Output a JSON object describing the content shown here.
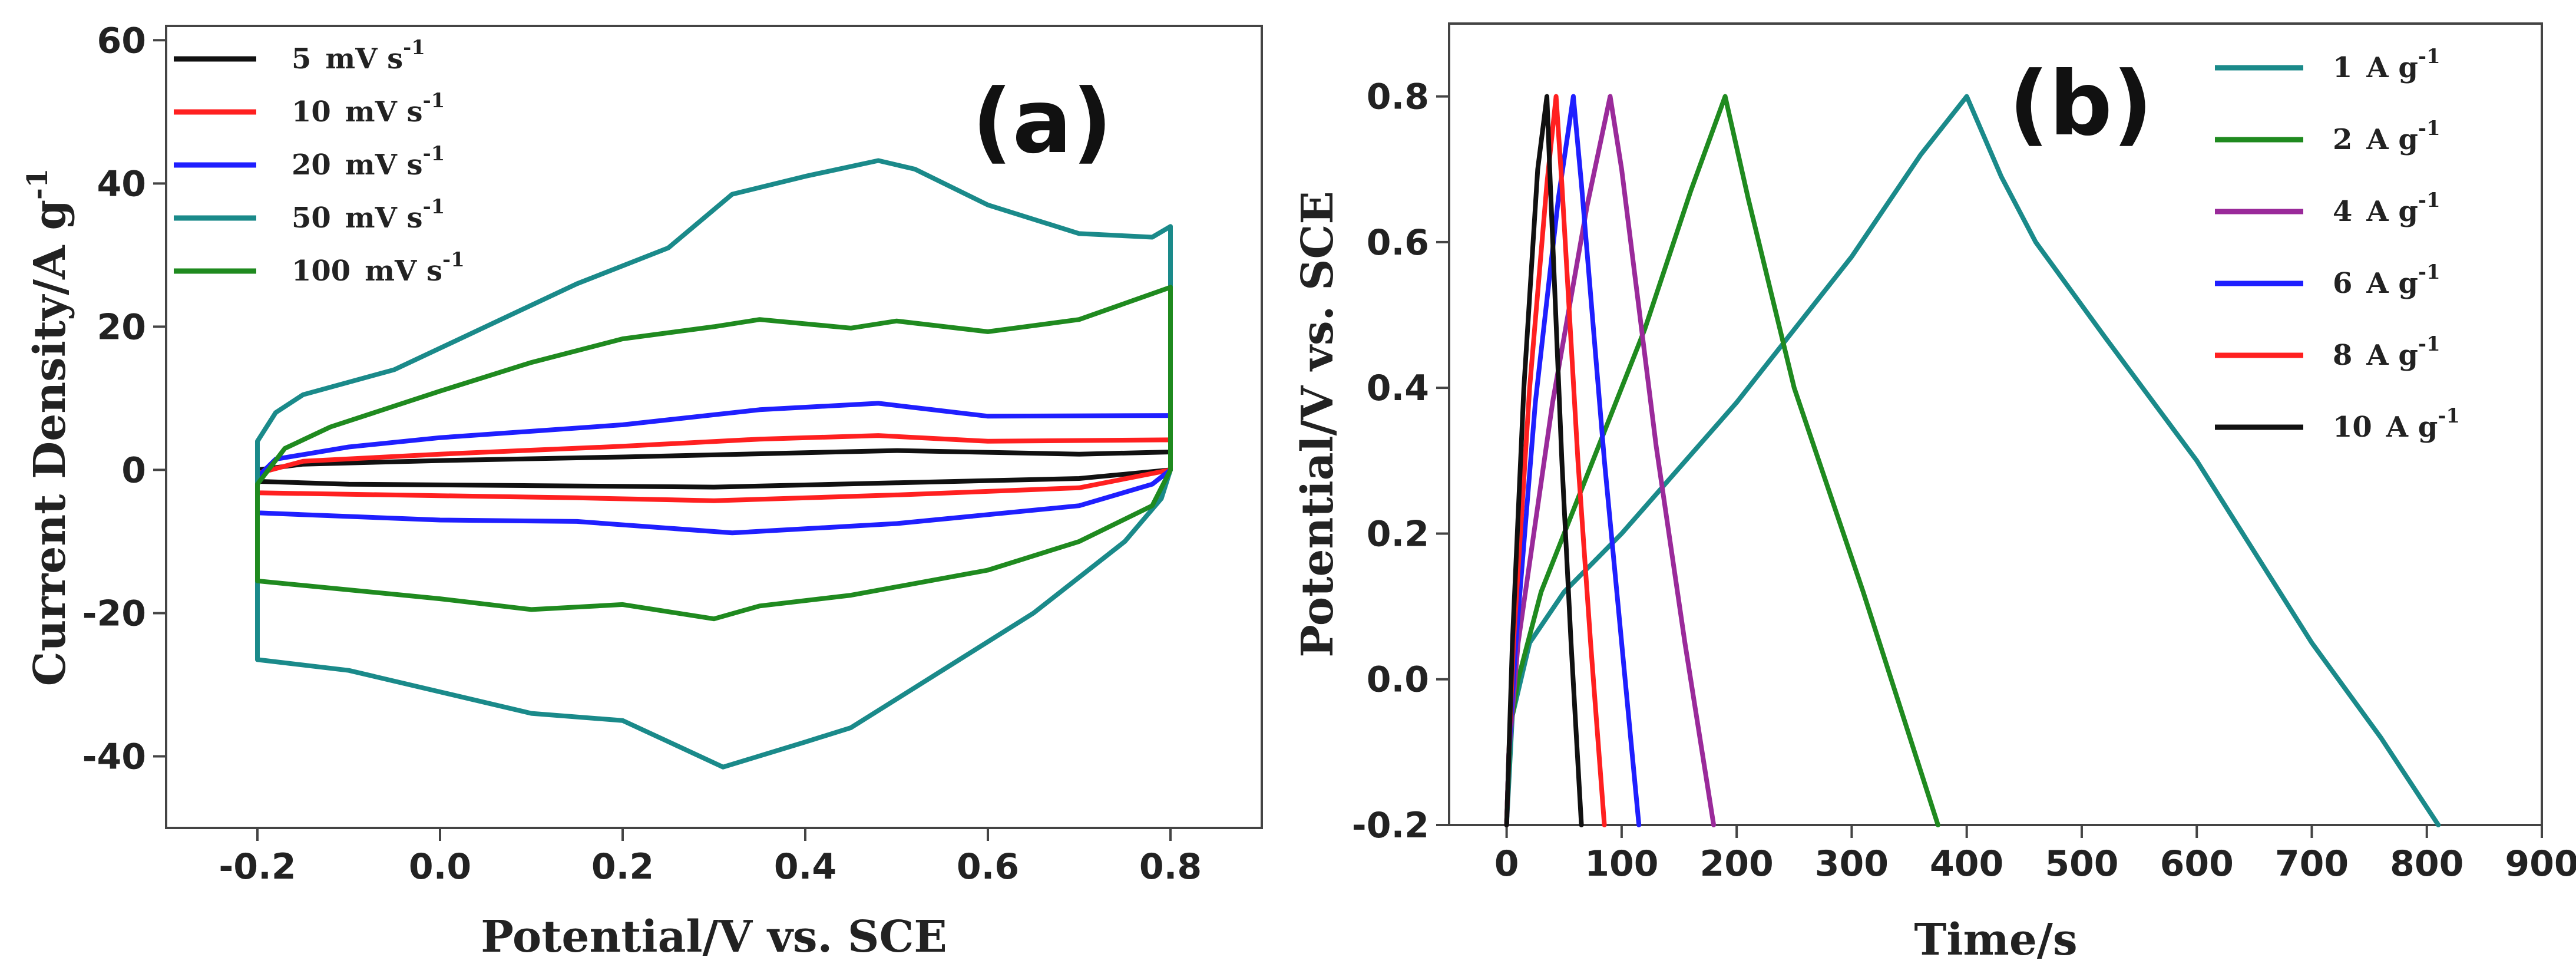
{
  "colors": {
    "black": "#111111",
    "red": "#ff2020",
    "blue": "#1f1fff",
    "teal": "#1a8a8a",
    "green": "#1f8a1f",
    "purple": "#9a2a9a"
  },
  "chart_data": [
    {
      "type": "line",
      "panel_label": "(a)",
      "xlabel": "Potential/V vs. SCE",
      "ylabel": "Current Density/A g",
      "ylabel_sup": "-1",
      "xlim": [
        -0.3,
        0.9
      ],
      "ylim": [
        -50,
        62
      ],
      "xticks": [
        -0.2,
        0.0,
        0.2,
        0.4,
        0.6,
        0.8
      ],
      "xtick_labels": [
        "-0.2",
        "0.0",
        "0.2",
        "0.4",
        "0.6",
        "0.8"
      ],
      "yticks": [
        -40,
        -20,
        0,
        20,
        40,
        60
      ],
      "ytick_labels": [
        "-40",
        "-20",
        "0",
        "20",
        "40",
        "60"
      ],
      "legend_position": "top-left",
      "series": [
        {
          "name": "5",
          "unit": "mV s",
          "sup": "-1",
          "color": "#111111",
          "anodic": [
            [
              -0.2,
              0
            ],
            [
              -0.15,
              0.8
            ],
            [
              0,
              1.3
            ],
            [
              0.2,
              1.8
            ],
            [
              0.4,
              2.4
            ],
            [
              0.5,
              2.7
            ],
            [
              0.7,
              2.2
            ],
            [
              0.8,
              2.5
            ]
          ],
          "cathodic": [
            [
              0.8,
              0
            ],
            [
              0.7,
              -1.2
            ],
            [
              0.5,
              -1.8
            ],
            [
              0.3,
              -2.4
            ],
            [
              0.1,
              -2.2
            ],
            [
              -0.1,
              -2.0
            ],
            [
              -0.2,
              -1.6
            ],
            [
              -0.2,
              0
            ]
          ]
        },
        {
          "name": "10",
          "unit": "mV s",
          "sup": "-1",
          "color": "#ff2020",
          "anodic": [
            [
              -0.2,
              -0.5
            ],
            [
              -0.15,
              1.2
            ],
            [
              0,
              2.2
            ],
            [
              0.2,
              3.3
            ],
            [
              0.35,
              4.3
            ],
            [
              0.48,
              4.8
            ],
            [
              0.6,
              4.0
            ],
            [
              0.8,
              4.2
            ]
          ],
          "cathodic": [
            [
              0.8,
              0
            ],
            [
              0.7,
              -2.5
            ],
            [
              0.5,
              -3.5
            ],
            [
              0.3,
              -4.3
            ],
            [
              0.15,
              -3.9
            ],
            [
              0,
              -3.6
            ],
            [
              -0.2,
              -3.2
            ],
            [
              -0.2,
              -0.5
            ]
          ]
        },
        {
          "name": "20",
          "unit": "mV s",
          "sup": "-1",
          "color": "#1f1fff",
          "anodic": [
            [
              -0.2,
              -1
            ],
            [
              -0.18,
              1.5
            ],
            [
              -0.1,
              3.2
            ],
            [
              0,
              4.5
            ],
            [
              0.2,
              6.3
            ],
            [
              0.35,
              8.4
            ],
            [
              0.48,
              9.3
            ],
            [
              0.6,
              7.5
            ],
            [
              0.8,
              7.6
            ]
          ],
          "cathodic": [
            [
              0.8,
              0
            ],
            [
              0.78,
              -2
            ],
            [
              0.7,
              -5
            ],
            [
              0.5,
              -7.5
            ],
            [
              0.32,
              -8.8
            ],
            [
              0.15,
              -7.2
            ],
            [
              0,
              -7
            ],
            [
              -0.2,
              -6
            ],
            [
              -0.2,
              -1
            ]
          ]
        },
        {
          "name": "50",
          "unit": "mV s",
          "sup": "-1",
          "color": "#1a8a8a",
          "anodic": [
            [
              -0.2,
              -26.5
            ],
            [
              -0.2,
              4
            ],
            [
              -0.18,
              8
            ],
            [
              -0.15,
              10.5
            ],
            [
              -0.05,
              14
            ],
            [
              0.05,
              20
            ],
            [
              0.15,
              26
            ],
            [
              0.25,
              31
            ],
            [
              0.32,
              38.5
            ],
            [
              0.4,
              41
            ],
            [
              0.48,
              43.2
            ],
            [
              0.52,
              42
            ],
            [
              0.6,
              37
            ],
            [
              0.7,
              33
            ],
            [
              0.78,
              32.5
            ],
            [
              0.8,
              34
            ]
          ],
          "cathodic": [
            [
              0.8,
              0
            ],
            [
              0.79,
              -4
            ],
            [
              0.75,
              -10
            ],
            [
              0.65,
              -20
            ],
            [
              0.55,
              -28
            ],
            [
              0.45,
              -36
            ],
            [
              0.4,
              -38
            ],
            [
              0.31,
              -41.5
            ],
            [
              0.2,
              -35
            ],
            [
              0.1,
              -34
            ],
            [
              0,
              -31
            ],
            [
              -0.1,
              -28
            ],
            [
              -0.2,
              -26.5
            ]
          ]
        },
        {
          "name": "100",
          "unit": "mV s",
          "sup": "-1",
          "color": "#1f8a1f",
          "anodic": [
            [
              -0.2,
              -15.5
            ],
            [
              -0.2,
              -2
            ],
            [
              -0.17,
              3
            ],
            [
              -0.12,
              6
            ],
            [
              0,
              11
            ],
            [
              0.1,
              15
            ],
            [
              0.2,
              18.3
            ],
            [
              0.3,
              20
            ],
            [
              0.35,
              21
            ],
            [
              0.45,
              19.8
            ],
            [
              0.5,
              20.8
            ],
            [
              0.6,
              19.3
            ],
            [
              0.7,
              21
            ],
            [
              0.8,
              25.5
            ]
          ],
          "cathodic": [
            [
              0.8,
              0
            ],
            [
              0.78,
              -5
            ],
            [
              0.7,
              -10
            ],
            [
              0.6,
              -14
            ],
            [
              0.45,
              -17.5
            ],
            [
              0.35,
              -19
            ],
            [
              0.3,
              -20.8
            ],
            [
              0.2,
              -18.8
            ],
            [
              0.1,
              -19.5
            ],
            [
              0,
              -18
            ],
            [
              -0.2,
              -15.5
            ]
          ]
        }
      ]
    },
    {
      "type": "line",
      "panel_label": "(b)",
      "xlabel": "Time/s",
      "ylabel": "Potential/V vs. SCE",
      "xlim": [
        -50,
        900
      ],
      "ylim": [
        -0.2,
        0.9
      ],
      "xticks": [
        0,
        100,
        200,
        300,
        400,
        500,
        600,
        700,
        800,
        900
      ],
      "xtick_labels": [
        "0",
        "100",
        "200",
        "300",
        "400",
        "500",
        "600",
        "700",
        "800",
        "900"
      ],
      "yticks": [
        -0.2,
        0.0,
        0.2,
        0.4,
        0.6,
        0.8
      ],
      "ytick_labels": [
        "-0.2",
        "0.0",
        "0.2",
        "0.4",
        "0.6",
        "0.8"
      ],
      "legend_position": "top-right",
      "series": [
        {
          "name": "1",
          "unit": "A g",
          "sup": "-1",
          "color": "#1a8a8a",
          "points": [
            [
              0,
              -0.2
            ],
            [
              5,
              -0.05
            ],
            [
              20,
              0.05
            ],
            [
              50,
              0.12
            ],
            [
              100,
              0.2
            ],
            [
              200,
              0.38
            ],
            [
              300,
              0.58
            ],
            [
              360,
              0.72
            ],
            [
              400,
              0.8
            ],
            [
              430,
              0.69
            ],
            [
              460,
              0.6
            ],
            [
              520,
              0.47
            ],
            [
              600,
              0.3
            ],
            [
              700,
              0.05
            ],
            [
              760,
              -0.08
            ],
            [
              810,
              -0.2
            ]
          ]
        },
        {
          "name": "2",
          "unit": "A g",
          "sup": "-1",
          "color": "#1f8a1f",
          "points": [
            [
              0,
              -0.2
            ],
            [
              3,
              -0.07
            ],
            [
              10,
              0.0
            ],
            [
              30,
              0.12
            ],
            [
              70,
              0.28
            ],
            [
              120,
              0.48
            ],
            [
              160,
              0.67
            ],
            [
              190,
              0.8
            ],
            [
              210,
              0.66
            ],
            [
              250,
              0.4
            ],
            [
              310,
              0.12
            ],
            [
              375,
              -0.2
            ]
          ]
        },
        {
          "name": "4",
          "unit": "A g",
          "sup": "-1",
          "color": "#9a2a9a",
          "points": [
            [
              0,
              -0.2
            ],
            [
              2,
              -0.1
            ],
            [
              10,
              0.05
            ],
            [
              40,
              0.38
            ],
            [
              70,
              0.65
            ],
            [
              90,
              0.8
            ],
            [
              100,
              0.7
            ],
            [
              130,
              0.32
            ],
            [
              155,
              0.05
            ],
            [
              180,
              -0.2
            ]
          ]
        },
        {
          "name": "6",
          "unit": "A g",
          "sup": "-1",
          "color": "#1f1fff",
          "points": [
            [
              0,
              -0.2
            ],
            [
              2,
              -0.1
            ],
            [
              8,
              0.05
            ],
            [
              25,
              0.38
            ],
            [
              45,
              0.66
            ],
            [
              58,
              0.8
            ],
            [
              65,
              0.68
            ],
            [
              85,
              0.3
            ],
            [
              100,
              0.05
            ],
            [
              115,
              -0.2
            ]
          ]
        },
        {
          "name": "8",
          "unit": "A g",
          "sup": "-1",
          "color": "#ff2020",
          "points": [
            [
              0,
              -0.2
            ],
            [
              2,
              -0.1
            ],
            [
              6,
              0.05
            ],
            [
              20,
              0.4
            ],
            [
              35,
              0.68
            ],
            [
              43,
              0.8
            ],
            [
              48,
              0.68
            ],
            [
              62,
              0.3
            ],
            [
              73,
              0.05
            ],
            [
              85,
              -0.2
            ]
          ]
        },
        {
          "name": "10",
          "unit": "A g",
          "sup": "-1",
          "color": "#111111",
          "points": [
            [
              0,
              -0.2
            ],
            [
              2,
              -0.1
            ],
            [
              5,
              0.05
            ],
            [
              15,
              0.4
            ],
            [
              27,
              0.7
            ],
            [
              35,
              0.8
            ],
            [
              38,
              0.68
            ],
            [
              48,
              0.3
            ],
            [
              56,
              0.05
            ],
            [
              65,
              -0.2
            ]
          ]
        }
      ]
    }
  ]
}
